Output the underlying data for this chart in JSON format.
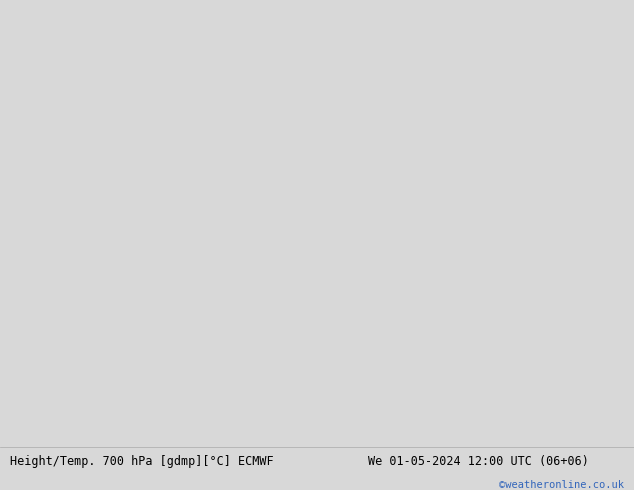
{
  "title_left": "Height/Temp. 700 hPa [gdmp][°C] ECMWF",
  "title_right": "We 01-05-2024 12:00 UTC (06+06)",
  "watermark": "©weatheronline.co.uk",
  "bg_color": "#d8d8d8",
  "land_color": "#bbeeaa",
  "sea_color": "#d8d8d8",
  "border_color": "#aaaaaa",
  "bottom_bar_color": "#e8e8e8",
  "watermark_color": "#3366bb",
  "fig_width": 6.34,
  "fig_height": 4.9,
  "dpi": 100,
  "extent": [
    55,
    175,
    0,
    65
  ],
  "contour_height_color": "#000000",
  "contour_temp_pos_color": "#000000",
  "contour_temp_neg_color": "#000000",
  "pink_color": "#ee00aa",
  "orange_color": "#ff8800",
  "red_color": "#dd2200"
}
